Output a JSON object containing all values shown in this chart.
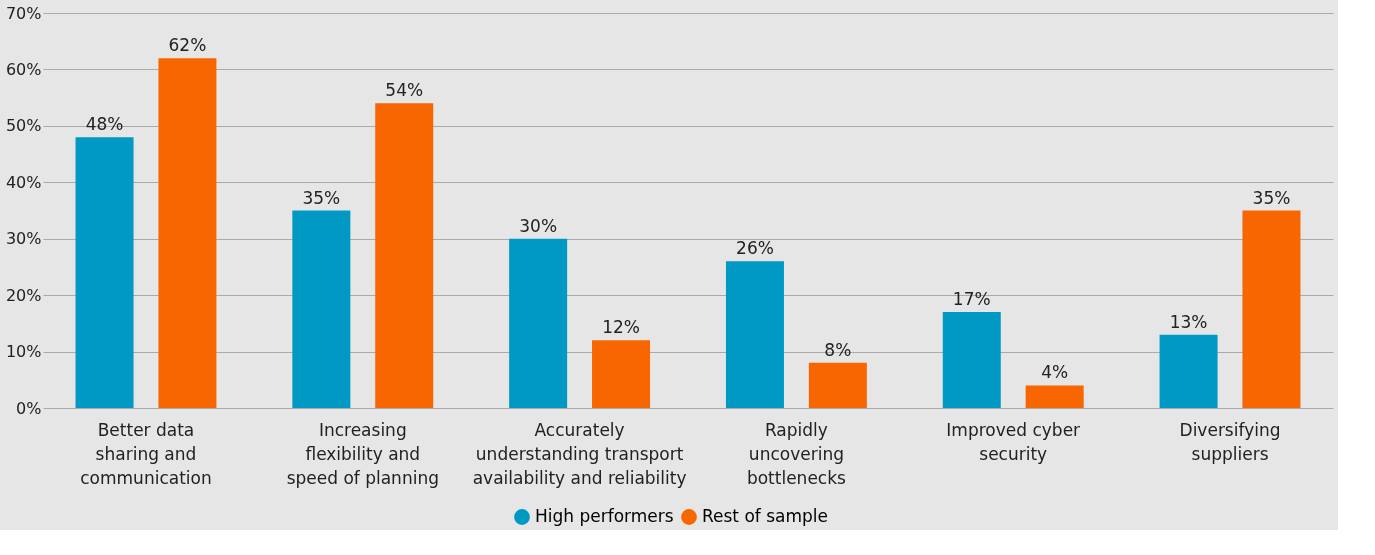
{
  "chart_data": {
    "type": "bar",
    "categories": [
      "Better data\nsharing and\ncommunication",
      "Increasing\nflexibility and\nspeed of planning",
      "Accurately\nunderstanding transport\navailability and reliability",
      "Rapidly\nuncovering\nbottlenecks",
      "Improved cyber\nsecurity",
      "Diversifying\nsuppliers"
    ],
    "series": [
      {
        "name": "High performers",
        "color": "#0099c4",
        "values": [
          48,
          35,
          30,
          26,
          17,
          13
        ],
        "value_labels": [
          "48%",
          "35%",
          "30%",
          "26%",
          "17%",
          "13%"
        ]
      },
      {
        "name": "Rest of sample",
        "color": "#f76600",
        "values": [
          62,
          54,
          12,
          8,
          4,
          35
        ],
        "value_labels": [
          "62%",
          "54%",
          "12%",
          "8%",
          "4%",
          "35%"
        ]
      }
    ],
    "ylim": [
      0,
      70
    ],
    "yticks": [
      {
        "value": 0,
        "label": "0%"
      },
      {
        "value": 10,
        "label": "10%"
      },
      {
        "value": 20,
        "label": "20%"
      },
      {
        "value": 30,
        "label": "30%"
      },
      {
        "value": 40,
        "label": "40%"
      },
      {
        "value": 50,
        "label": "50%"
      },
      {
        "value": 60,
        "label": "60%"
      },
      {
        "value": 70,
        "label": "70%"
      }
    ],
    "grid": "y",
    "legend": "bottom"
  }
}
